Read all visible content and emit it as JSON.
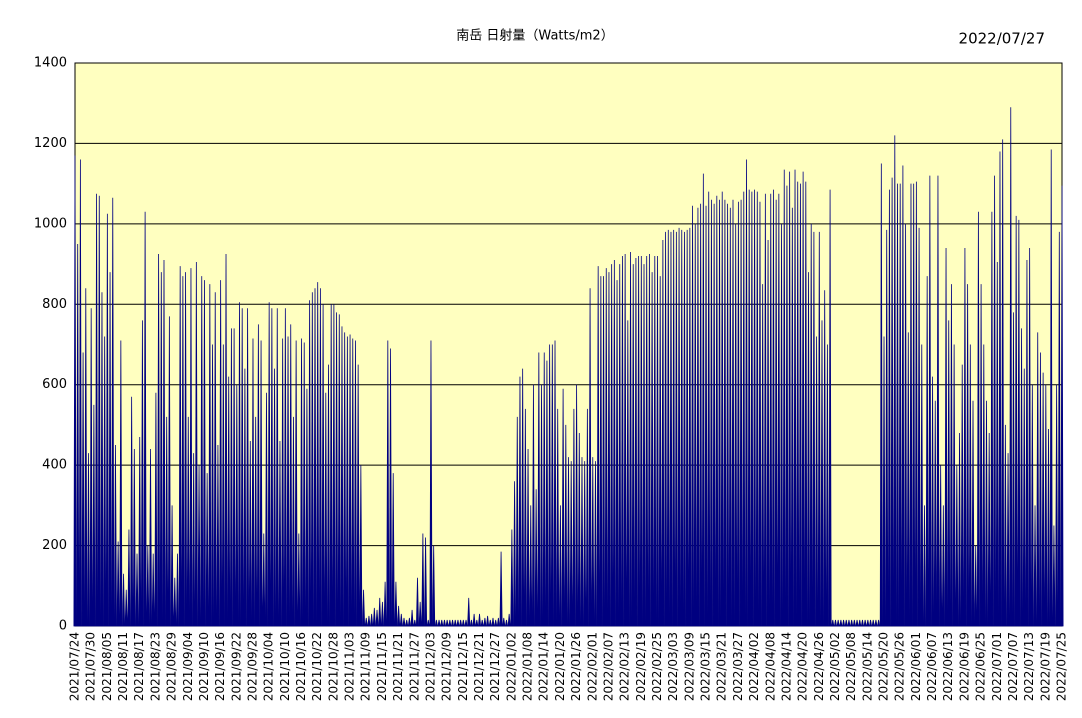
{
  "chart_data": {
    "type": "spike",
    "title": "南岳 日射量（Watts/m2）",
    "date": "2022/07/27",
    "color": "#000080",
    "background": "#ffffc0",
    "grid": true,
    "ylim": [
      0,
      1400
    ],
    "yticks": [
      0,
      200,
      400,
      600,
      800,
      1000,
      1200,
      1400
    ],
    "categories": [
      "2021/07/24",
      null,
      null,
      null,
      null,
      null,
      "2021/07/30",
      null,
      null,
      null,
      null,
      null,
      "2021/08/05",
      null,
      null,
      null,
      null,
      null,
      "2021/08/11",
      null,
      null,
      null,
      null,
      null,
      "2021/08/17",
      null,
      null,
      null,
      null,
      null,
      "2021/08/23",
      null,
      null,
      null,
      null,
      null,
      "2021/08/29",
      null,
      null,
      null,
      null,
      null,
      "2021/09/04",
      null,
      null,
      null,
      null,
      null,
      "2021/09/10",
      null,
      null,
      null,
      null,
      null,
      "2021/09/16",
      null,
      null,
      null,
      null,
      null,
      "2021/09/22",
      null,
      null,
      null,
      null,
      null,
      "2021/09/28",
      null,
      null,
      null,
      null,
      null,
      "2021/10/04",
      null,
      null,
      null,
      null,
      null,
      "2021/10/10",
      null,
      null,
      null,
      null,
      null,
      "2021/10/16",
      null,
      null,
      null,
      null,
      null,
      "2021/10/22",
      null,
      null,
      null,
      null,
      null,
      "2021/10/28",
      null,
      null,
      null,
      null,
      null,
      "2021/11/03",
      null,
      null,
      null,
      null,
      null,
      "2021/11/09",
      null,
      null,
      null,
      null,
      null,
      "2021/11/15",
      null,
      null,
      null,
      null,
      null,
      "2021/11/21",
      null,
      null,
      null,
      null,
      null,
      "2021/11/27",
      null,
      null,
      null,
      null,
      null,
      "2021/12/03",
      null,
      null,
      null,
      null,
      null,
      "2021/12/09",
      null,
      null,
      null,
      null,
      null,
      "2021/12/15",
      null,
      null,
      null,
      null,
      null,
      "2021/12/21",
      null,
      null,
      null,
      null,
      null,
      "2021/12/27",
      null,
      null,
      null,
      null,
      null,
      "2022/01/02",
      null,
      null,
      null,
      null,
      null,
      "2022/01/08",
      null,
      null,
      null,
      null,
      null,
      "2022/01/14",
      null,
      null,
      null,
      null,
      null,
      "2022/01/20",
      null,
      null,
      null,
      null,
      null,
      "2022/01/26",
      null,
      null,
      null,
      null,
      null,
      "2022/02/01",
      null,
      null,
      null,
      null,
      null,
      "2022/02/07",
      null,
      null,
      null,
      null,
      null,
      "2022/02/13",
      null,
      null,
      null,
      null,
      null,
      "2022/02/19",
      null,
      null,
      null,
      null,
      null,
      "2022/02/25",
      null,
      null,
      null,
      null,
      null,
      "2022/03/03",
      null,
      null,
      null,
      null,
      null,
      "2022/03/09",
      null,
      null,
      null,
      null,
      null,
      "2022/03/15",
      null,
      null,
      null,
      null,
      null,
      "2022/03/21",
      null,
      null,
      null,
      null,
      null,
      "2022/03/27",
      null,
      null,
      null,
      null,
      null,
      "2022/04/02",
      null,
      null,
      null,
      null,
      null,
      "2022/04/08",
      null,
      null,
      null,
      null,
      null,
      "2022/04/14",
      null,
      null,
      null,
      null,
      null,
      "2022/04/20",
      null,
      null,
      null,
      null,
      null,
      "2022/04/26",
      null,
      null,
      null,
      null,
      null,
      "2022/05/02",
      null,
      null,
      null,
      null,
      null,
      "2022/05/08",
      null,
      null,
      null,
      null,
      null,
      "2022/05/14",
      null,
      null,
      null,
      null,
      null,
      "2022/05/20",
      null,
      null,
      null,
      null,
      null,
      "2022/05/26",
      null,
      null,
      null,
      null,
      null,
      "2022/06/01",
      null,
      null,
      null,
      null,
      null,
      "2022/06/07",
      null,
      null,
      null,
      null,
      null,
      "2022/06/13",
      null,
      null,
      null,
      null,
      null,
      "2022/06/19",
      null,
      null,
      null,
      null,
      null,
      "2022/06/25",
      null,
      null,
      null,
      null,
      null,
      "2022/07/01",
      null,
      null,
      null,
      null,
      null,
      "2022/07/07",
      null,
      null,
      null,
      null,
      null,
      "2022/07/13",
      null,
      null,
      null,
      null,
      null,
      "2022/07/19",
      null,
      null,
      null,
      null,
      null,
      "2022/07/25"
    ],
    "values": [
      1170,
      950,
      1160,
      680,
      840,
      430,
      790,
      550,
      1075,
      1070,
      830,
      720,
      1025,
      880,
      1065,
      450,
      210,
      710,
      130,
      90,
      240,
      570,
      440,
      180,
      470,
      760,
      1030,
      200,
      440,
      180,
      580,
      925,
      880,
      910,
      520,
      770,
      300,
      120,
      180,
      895,
      870,
      880,
      520,
      890,
      430,
      905,
      400,
      870,
      860,
      380,
      850,
      700,
      830,
      450,
      860,
      700,
      925,
      620,
      740,
      740,
      600,
      805,
      790,
      640,
      790,
      460,
      715,
      520,
      750,
      710,
      230,
      580,
      805,
      790,
      640,
      790,
      460,
      715,
      790,
      720,
      750,
      520,
      710,
      230,
      715,
      705,
      590,
      810,
      830,
      840,
      855,
      840,
      800,
      580,
      650,
      800,
      800,
      780,
      775,
      745,
      730,
      720,
      725,
      715,
      710,
      650,
      400,
      90,
      20,
      25,
      30,
      45,
      40,
      70,
      60,
      110,
      710,
      690,
      380,
      110,
      50,
      30,
      20,
      15,
      20,
      40,
      15,
      120,
      60,
      230,
      220,
      15,
      710,
      200,
      15,
      15,
      15,
      15,
      15,
      15,
      15,
      15,
      15,
      15,
      15,
      15,
      70,
      15,
      30,
      15,
      30,
      15,
      20,
      25,
      15,
      20,
      15,
      20,
      185,
      20,
      15,
      30,
      240,
      360,
      520,
      620,
      640,
      540,
      440,
      300,
      600,
      340,
      680,
      600,
      680,
      660,
      700,
      700,
      710,
      540,
      300,
      590,
      500,
      420,
      410,
      540,
      600,
      480,
      420,
      410,
      540,
      840,
      420,
      410,
      895,
      870,
      870,
      890,
      880,
      900,
      910,
      860,
      900,
      920,
      925,
      760,
      930,
      900,
      915,
      920,
      920,
      900,
      920,
      925,
      880,
      920,
      920,
      870,
      960,
      980,
      985,
      980,
      985,
      980,
      990,
      985,
      980,
      985,
      990,
      1045,
      1000,
      1040,
      1050,
      1125,
      1045,
      1080,
      1060,
      1050,
      1070,
      1060,
      1080,
      1060,
      1050,
      1040,
      1060,
      1000,
      1055,
      1060,
      1080,
      1160,
      1085,
      1080,
      1085,
      1080,
      1055,
      850,
      1075,
      960,
      1075,
      1085,
      1060,
      1075,
      1000,
      1135,
      1095,
      1130,
      1040,
      1135,
      1105,
      1100,
      1130,
      1105,
      880,
      1000,
      980,
      720,
      980,
      760,
      835,
      700,
      1085,
      15,
      15,
      15,
      15,
      15,
      15,
      15,
      15,
      15,
      15,
      15,
      15,
      15,
      15,
      15,
      15,
      15,
      15,
      1150,
      720,
      985,
      1085,
      1115,
      1220,
      1100,
      1100,
      1145,
      1000,
      730,
      1100,
      1100,
      1105,
      990,
      700,
      300,
      870,
      1120,
      620,
      560,
      1120,
      400,
      300,
      940,
      760,
      850,
      700,
      400,
      480,
      650,
      940,
      850,
      700,
      560,
      200,
      1030,
      850,
      700,
      560,
      480,
      1030,
      1120,
      905,
      1180,
      1210,
      500,
      430,
      1290,
      780,
      1020,
      1010,
      740,
      640,
      910,
      940,
      600,
      300,
      730,
      680,
      630,
      600,
      490,
      1185,
      250,
      600,
      980,
      1095
    ]
  }
}
